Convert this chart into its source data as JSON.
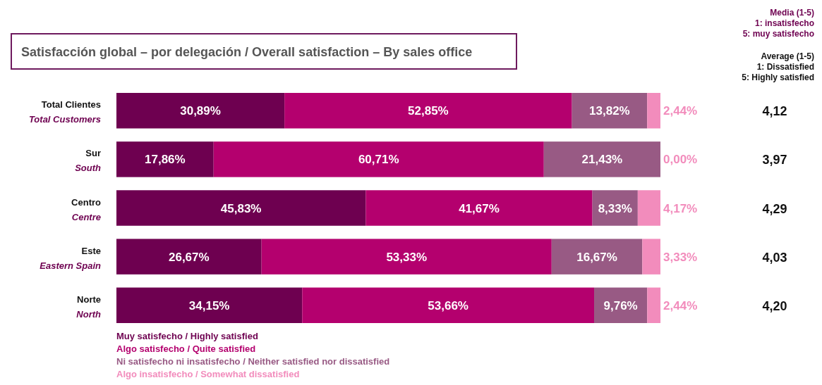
{
  "chart_data": [
    {
      "type": "bar",
      "orientation": "horizontal",
      "stacked": true,
      "title": "Satisfacción global – por delegación / Overall satisfaction – By sales office",
      "categories": [
        "Total Clientes\nTotal Customers",
        "Sur\nSouth",
        "Centro\nCentre",
        "Este\nEastern Spain",
        "Norte\nNorth"
      ],
      "xlim": [
        0,
        100
      ],
      "tick_labels": false,
      "legend": "bottom left",
      "series": [
        {
          "name": "Muy satisfecho / Highly satisfied",
          "color": "#6e0050",
          "values": [
            30.89,
            17.86,
            45.83,
            26.67,
            34.15
          ],
          "value_labels": [
            "30,89%",
            "17,86%",
            "45,83%",
            "26,67%",
            "34,15%"
          ]
        },
        {
          "name": "Algo satisfecho / Quite satisfied",
          "color": "#b4006e",
          "values": [
            52.85,
            60.71,
            41.67,
            53.33,
            53.66
          ],
          "value_labels": [
            "52,85%",
            "60,71%",
            "41,67%",
            "53,33%",
            "53,66%"
          ]
        },
        {
          "name": "Ni satisfecho ni insatisfecho / Neither satisfied nor dissatisfied",
          "color": "#985a84",
          "values": [
            13.82,
            21.43,
            8.33,
            16.67,
            9.76
          ],
          "value_labels": [
            "13,82%",
            "21,43%",
            "8,33%",
            "16,67%",
            "9,76%"
          ]
        },
        {
          "name": "Algo insatisfecho / Somewhat dissatisfied",
          "color": "#f28cbc",
          "values": [
            2.44,
            0,
            4.17,
            3.33,
            2.44
          ],
          "value_labels": [
            "2,44%",
            "0,00%",
            "4,17%",
            "3,33%",
            "2,44%"
          ]
        }
      ]
    },
    {
      "type": "other",
      "title": "Media (1-5)\n1: insatisfecho\n5: muy satisfecho",
      "subtitle": "Average (1-5)\n1: Dissatisfied\n5: Highly satisfied",
      "value_labels": [
        "4,12",
        "3,97",
        "4,29",
        "4,03",
        "4,20"
      ]
    }
  ]
}
